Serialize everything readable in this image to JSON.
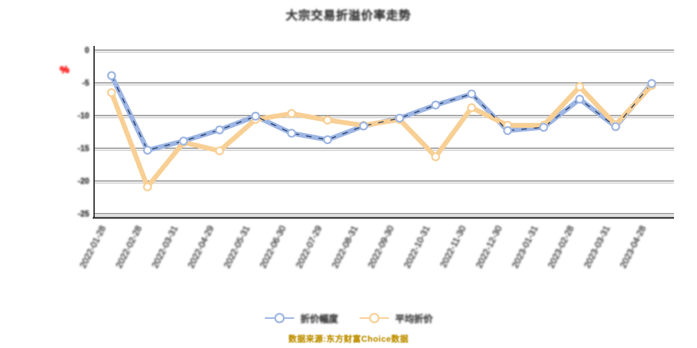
{
  "title": "大宗交易折溢价率走势",
  "y_axis": {
    "unit": "%",
    "unit_color": "#ff0000",
    "tick_labels": [
      "0",
      "-5",
      "-10",
      "-15",
      "-20",
      "-25"
    ]
  },
  "legend": [
    {
      "label": "折价幅度",
      "color": "#9db5e3"
    },
    {
      "label": "平均折价",
      "color": "#f8cf94"
    }
  ],
  "watermark": "数据来源:东方财富Choice数据",
  "colors": {
    "blue_line": "#9db5e3",
    "blue_dash_overlay": "#1f3864",
    "orange_line": "#f8cf94",
    "axis": "#333333",
    "grid_main": "#4a4a4a",
    "grid_echo": "#9c9c9c",
    "text": "#3d3d3d"
  },
  "chart_data": {
    "type": "line",
    "x": [
      "2022-01-28",
      "2022-02-28",
      "2022-03-31",
      "2022-04-29",
      "2022-05-31",
      "2022-06-30",
      "2022-07-29",
      "2022-08-31",
      "2022-09-30",
      "2022-10-31",
      "2022-11-30",
      "2022-12-30",
      "2023-01-31",
      "2023-02-28",
      "2023-03-31",
      "2023-04-28"
    ],
    "series": [
      {
        "name": "折价幅度",
        "color": "#9db5e3",
        "marker": "circle-open",
        "dash_overlay": "#1f3864",
        "values": [
          -3.9,
          -15.3,
          -13.9,
          -12.2,
          -10.1,
          -12.7,
          -13.7,
          -11.6,
          -10.4,
          -8.4,
          -6.7,
          -12.3,
          -11.8,
          -7.5,
          -11.7,
          -5.1
        ]
      },
      {
        "name": "平均折价",
        "color": "#f8cf94",
        "marker": "circle-open",
        "values": [
          -6.5,
          -20.9,
          -14.1,
          -15.4,
          -10.6,
          -9.7,
          -10.7,
          -11.5,
          -10.6,
          -16.3,
          -8.8,
          -11.5,
          -11.5,
          -5.6,
          -11.4,
          -5.4
        ]
      }
    ],
    "yticks": [
      0,
      -5,
      -10,
      -15,
      -20,
      -25
    ],
    "ylim": [
      -26.5,
      0.5
    ],
    "grid": true,
    "legend_position": "bottom",
    "x_label_rotation": -63
  }
}
